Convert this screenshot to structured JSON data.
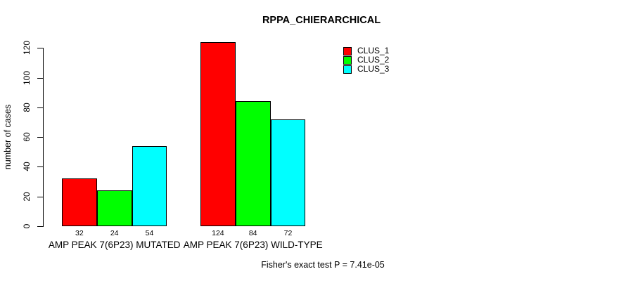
{
  "chart_data": {
    "type": "bar",
    "title": "RPPA_CHIERARCHICAL",
    "xlabel": "",
    "ylabel": "number of cases",
    "categories": [
      "AMP PEAK  7(6P23) MUTATED",
      "AMP PEAK  7(6P23) WILD-TYPE"
    ],
    "series": [
      {
        "name": "CLUS_1",
        "color": "#ff0000",
        "values": [
          32,
          124
        ]
      },
      {
        "name": "CLUS_2",
        "color": "#00ff00",
        "values": [
          24,
          84
        ]
      },
      {
        "name": "CLUS_3",
        "color": "#00ffff",
        "values": [
          54,
          72
        ]
      }
    ],
    "bar_value_labels": [
      [
        "32",
        "24",
        "54"
      ],
      [
        "124",
        "84",
        "72"
      ]
    ],
    "yticks": [
      0,
      20,
      40,
      60,
      80,
      100,
      120
    ],
    "ylim": [
      0,
      124
    ],
    "grid": false,
    "legend_position": "top-right",
    "bar_border_color": "#000000",
    "annotation": "Fisher's exact test P = 7.41e-05"
  }
}
